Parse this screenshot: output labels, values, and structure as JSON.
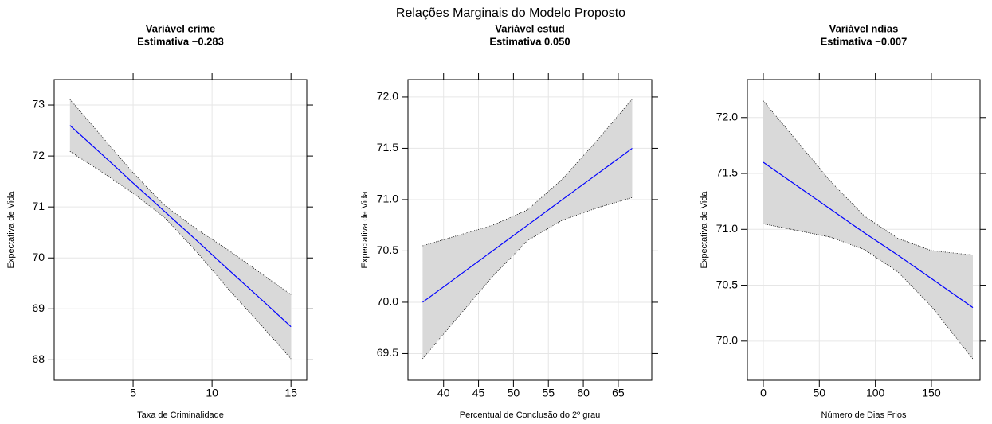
{
  "title": "Relações Marginais do Modelo Proposto",
  "chart_data": [
    {
      "type": "line",
      "title": "Variável crime",
      "subtitle": "Estimativa −0.283",
      "xlabel": "Taxa de Criminalidade",
      "ylabel": "Expectativa de Vida",
      "x": [
        1,
        3,
        5,
        7,
        9,
        11,
        13,
        15
      ],
      "values": [
        72.6,
        72.04,
        71.47,
        70.91,
        70.35,
        69.78,
        69.22,
        68.65
      ],
      "upper": [
        73.11,
        72.39,
        71.67,
        71.03,
        70.57,
        70.16,
        69.72,
        69.28
      ],
      "lower": [
        72.09,
        71.69,
        71.27,
        70.79,
        70.13,
        69.4,
        68.72,
        68.02
      ],
      "color": "#0000ff",
      "band_color": "#d9d9d9",
      "xlim": [
        0,
        16
      ],
      "ylim": [
        67.6,
        73.5
      ],
      "xticks": [
        5,
        10,
        15
      ],
      "yticks": [
        68,
        69,
        70,
        71,
        72,
        73
      ],
      "grid": true
    },
    {
      "type": "line",
      "title": "Variável estud",
      "subtitle": "Estimativa 0.050",
      "xlabel": "Percentual de Conclusão do 2º grau",
      "ylabel": "Expectativa de Vida",
      "x": [
        37,
        42,
        47,
        52,
        57,
        62,
        67
      ],
      "values": [
        70.0,
        70.25,
        70.5,
        70.75,
        71.0,
        71.25,
        71.5
      ],
      "upper": [
        70.55,
        70.65,
        70.75,
        70.9,
        71.2,
        71.58,
        71.98
      ],
      "lower": [
        69.45,
        69.85,
        70.25,
        70.6,
        70.8,
        70.92,
        71.02
      ],
      "color": "#0000ff",
      "band_color": "#d9d9d9",
      "xlim": [
        34.9,
        69.8
      ],
      "ylim": [
        69.24,
        72.17
      ],
      "xticks": [
        40,
        45,
        50,
        55,
        60,
        65
      ],
      "yticks": [
        69.5,
        {
          "value": 70,
          "label": "70.0"
        },
        70.5,
        {
          "value": 71,
          "label": "71.0"
        },
        71.5,
        {
          "value": 72,
          "label": "72.0"
        }
      ],
      "grid": true
    },
    {
      "type": "line",
      "title": "Variável ndias",
      "subtitle": "Estimativa −0.007",
      "xlabel": "Número de Dias Frios",
      "ylabel": "Expectativa de Vida",
      "x": [
        0,
        30,
        60,
        90,
        120,
        150,
        187
      ],
      "values": [
        71.6,
        71.39,
        71.18,
        70.97,
        70.77,
        70.56,
        70.3
      ],
      "upper": [
        72.15,
        71.79,
        71.43,
        71.12,
        70.92,
        70.81,
        70.77
      ],
      "lower": [
        71.05,
        70.99,
        70.93,
        70.82,
        70.62,
        70.31,
        69.84
      ],
      "color": "#0000ff",
      "band_color": "#d9d9d9",
      "xlim": [
        -14.2,
        193.4
      ],
      "ylim": [
        69.65,
        72.34
      ],
      "xticks": [
        0,
        50,
        100,
        150
      ],
      "yticks": [
        {
          "value": 70,
          "label": "70.0"
        },
        70.5,
        {
          "value": 71,
          "label": "71.0"
        },
        71.5,
        {
          "value": 72,
          "label": "72.0"
        }
      ],
      "grid": true
    }
  ]
}
